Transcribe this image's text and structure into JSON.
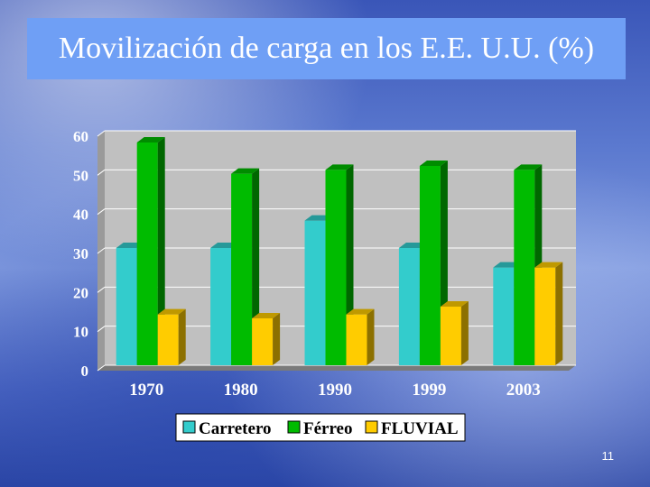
{
  "slide": {
    "title": "Movilización de carga en los E.E. U.U. (%)",
    "number": "11"
  },
  "colors": {
    "carretero": "#33cccc",
    "ferreo": "#00bb00",
    "fluvial": "#ffcc00"
  },
  "chart_data": {
    "type": "bar",
    "title": "",
    "xlabel": "",
    "ylabel": "",
    "categories": [
      "1970",
      "1980",
      "1990",
      "1999",
      "2003"
    ],
    "series": [
      {
        "name": "Carretero",
        "values": [
          30,
          30,
          37,
          30,
          25
        ]
      },
      {
        "name": "Férreo",
        "values": [
          57,
          49,
          50,
          51,
          50
        ]
      },
      {
        "name": "FLUVIAL",
        "values": [
          13,
          12,
          13,
          15,
          25
        ]
      }
    ],
    "ylim": [
      0,
      60
    ],
    "yticks": [
      "0",
      "10",
      "20",
      "30",
      "40",
      "50",
      "60"
    ],
    "grid": true,
    "legend_position": "bottom",
    "style": "3d-column"
  }
}
